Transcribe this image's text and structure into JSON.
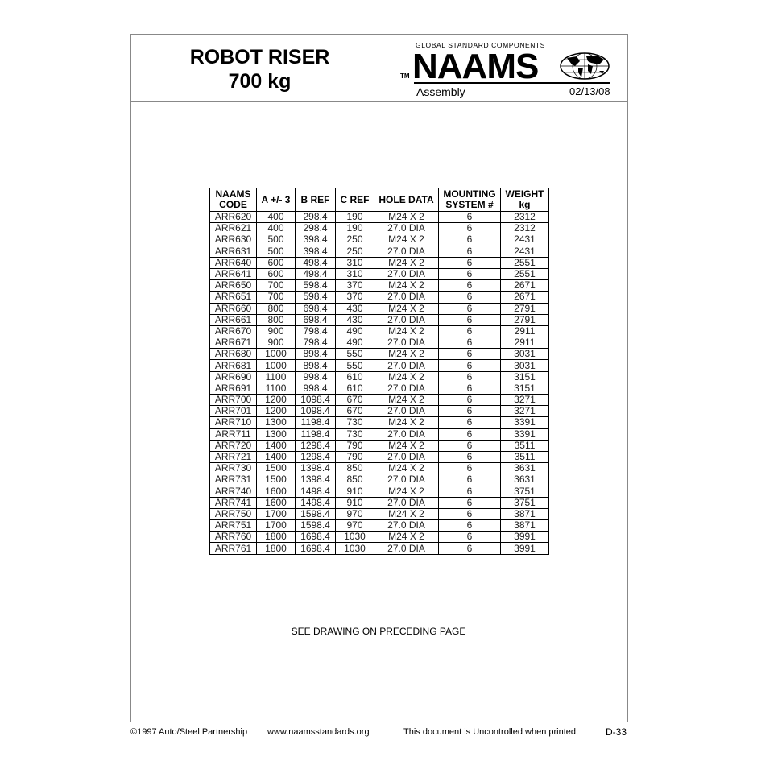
{
  "header": {
    "title_line1": "ROBOT RISER",
    "title_line2": "700 kg",
    "tagline": "GLOBAL STANDARD COMPONENTS",
    "logo": "NAAMS",
    "tm": "TM",
    "section": "Assembly",
    "date": "02/13/08"
  },
  "table": {
    "headers": [
      [
        "NAAMS",
        "CODE"
      ],
      [
        "A +/- 3",
        ""
      ],
      [
        "B REF",
        ""
      ],
      [
        "C REF",
        ""
      ],
      [
        "HOLE DATA",
        ""
      ],
      [
        "MOUNTING",
        "SYSTEM #"
      ],
      [
        "WEIGHT",
        "kg"
      ]
    ],
    "rows": [
      [
        "ARR620",
        "400",
        "298.4",
        "190",
        "M24 X 2",
        "6",
        "2312"
      ],
      [
        "ARR621",
        "400",
        "298.4",
        "190",
        "27.0 DIA",
        "6",
        "2312"
      ],
      [
        "ARR630",
        "500",
        "398.4",
        "250",
        "M24 X 2",
        "6",
        "2431"
      ],
      [
        "ARR631",
        "500",
        "398.4",
        "250",
        "27.0 DIA",
        "6",
        "2431"
      ],
      [
        "ARR640",
        "600",
        "498.4",
        "310",
        "M24 X 2",
        "6",
        "2551"
      ],
      [
        "ARR641",
        "600",
        "498.4",
        "310",
        "27.0 DIA",
        "6",
        "2551"
      ],
      [
        "ARR650",
        "700",
        "598.4",
        "370",
        "M24 X 2",
        "6",
        "2671"
      ],
      [
        "ARR651",
        "700",
        "598.4",
        "370",
        "27.0 DIA",
        "6",
        "2671"
      ],
      [
        "ARR660",
        "800",
        "698.4",
        "430",
        "M24 X 2",
        "6",
        "2791"
      ],
      [
        "ARR661",
        "800",
        "698.4",
        "430",
        "27.0 DIA",
        "6",
        "2791"
      ],
      [
        "ARR670",
        "900",
        "798.4",
        "490",
        "M24 X 2",
        "6",
        "2911"
      ],
      [
        "ARR671",
        "900",
        "798.4",
        "490",
        "27.0 DIA",
        "6",
        "2911"
      ],
      [
        "ARR680",
        "1000",
        "898.4",
        "550",
        "M24 X 2",
        "6",
        "3031"
      ],
      [
        "ARR681",
        "1000",
        "898.4",
        "550",
        "27.0 DIA",
        "6",
        "3031"
      ],
      [
        "ARR690",
        "1100",
        "998.4",
        "610",
        "M24 X 2",
        "6",
        "3151"
      ],
      [
        "ARR691",
        "1100",
        "998.4",
        "610",
        "27.0 DIA",
        "6",
        "3151"
      ],
      [
        "ARR700",
        "1200",
        "1098.4",
        "670",
        "M24 X 2",
        "6",
        "3271"
      ],
      [
        "ARR701",
        "1200",
        "1098.4",
        "670",
        "27.0 DIA",
        "6",
        "3271"
      ],
      [
        "ARR710",
        "1300",
        "1198.4",
        "730",
        "M24 X 2",
        "6",
        "3391"
      ],
      [
        "ARR711",
        "1300",
        "1198.4",
        "730",
        "27.0 DIA",
        "6",
        "3391"
      ],
      [
        "ARR720",
        "1400",
        "1298.4",
        "790",
        "M24 X 2",
        "6",
        "3511"
      ],
      [
        "ARR721",
        "1400",
        "1298.4",
        "790",
        "27.0 DIA",
        "6",
        "3511"
      ],
      [
        "ARR730",
        "1500",
        "1398.4",
        "850",
        "M24 X 2",
        "6",
        "3631"
      ],
      [
        "ARR731",
        "1500",
        "1398.4",
        "850",
        "27.0 DIA",
        "6",
        "3631"
      ],
      [
        "ARR740",
        "1600",
        "1498.4",
        "910",
        "M24 X 2",
        "6",
        "3751"
      ],
      [
        "ARR741",
        "1600",
        "1498.4",
        "910",
        "27.0 DIA",
        "6",
        "3751"
      ],
      [
        "ARR750",
        "1700",
        "1598.4",
        "970",
        "M24 X 2",
        "6",
        "3871"
      ],
      [
        "ARR751",
        "1700",
        "1598.4",
        "970",
        "27.0 DIA",
        "6",
        "3871"
      ],
      [
        "ARR760",
        "1800",
        "1698.4",
        "1030",
        "M24 X 2",
        "6",
        "3991"
      ],
      [
        "ARR761",
        "1800",
        "1698.4",
        "1030",
        "27.0 DIA",
        "6",
        "3991"
      ]
    ]
  },
  "note": "SEE DRAWING ON PRECEDING PAGE",
  "footer": {
    "copyright": "©1997 Auto/Steel Partnership",
    "website": "www.naamsstandards.org",
    "disclaimer": "This document is Uncontrolled when printed.",
    "page": "D-33"
  }
}
